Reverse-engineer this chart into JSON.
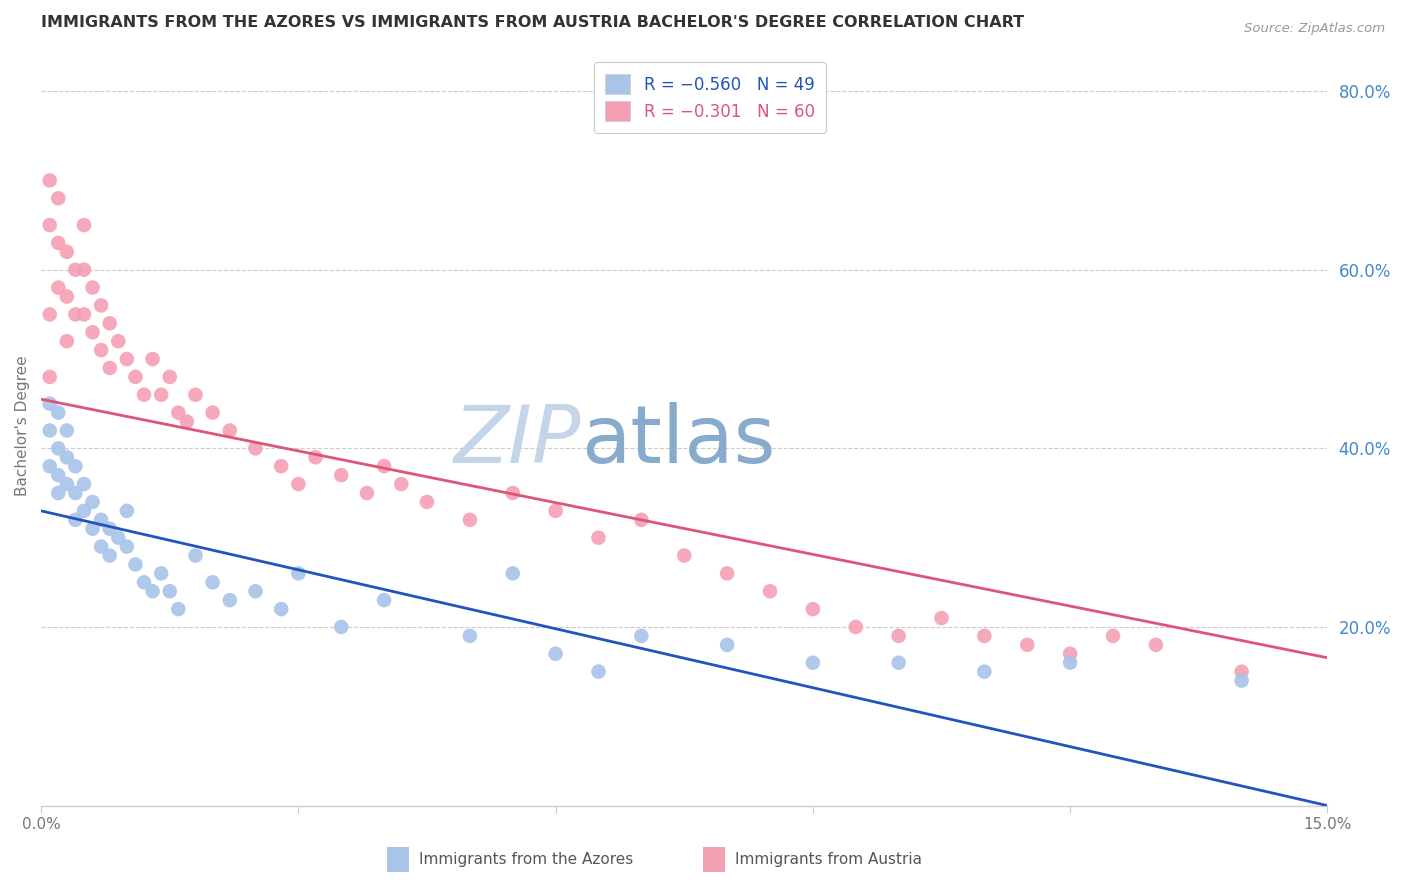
{
  "title": "IMMIGRANTS FROM THE AZORES VS IMMIGRANTS FROM AUSTRIA BACHELOR'S DEGREE CORRELATION CHART",
  "source": "Source: ZipAtlas.com",
  "ylabel": "Bachelor's Degree",
  "x_min": 0.0,
  "x_max": 0.15,
  "y_min": 0.0,
  "y_max": 0.85,
  "right_yticks": [
    0.2,
    0.4,
    0.6,
    0.8
  ],
  "right_yticklabels": [
    "20.0%",
    "40.0%",
    "60.0%",
    "80.0%"
  ],
  "azores_color": "#a8c4e8",
  "austria_color": "#f4a0b4",
  "azores_line_color": "#2255bb",
  "austria_line_color": "#dd5577",
  "azores_trend_intercept": 0.33,
  "azores_trend_slope": -2.2,
  "austria_trend_intercept": 0.455,
  "austria_trend_slope": -1.93,
  "background_color": "#ffffff",
  "grid_color": "#cccccc",
  "title_color": "#333333",
  "right_axis_color": "#4488cc",
  "watermark_zip_color": "#c5d5e8",
  "watermark_atlas_color": "#88aacc",
  "azores_points_x": [
    0.001,
    0.001,
    0.001,
    0.002,
    0.002,
    0.002,
    0.002,
    0.003,
    0.003,
    0.003,
    0.004,
    0.004,
    0.004,
    0.005,
    0.005,
    0.006,
    0.006,
    0.007,
    0.007,
    0.008,
    0.008,
    0.009,
    0.01,
    0.01,
    0.011,
    0.012,
    0.013,
    0.014,
    0.015,
    0.016,
    0.018,
    0.02,
    0.022,
    0.025,
    0.028,
    0.03,
    0.035,
    0.04,
    0.05,
    0.055,
    0.06,
    0.065,
    0.07,
    0.08,
    0.09,
    0.1,
    0.11,
    0.12,
    0.14
  ],
  "azores_points_y": [
    0.45,
    0.42,
    0.38,
    0.44,
    0.4,
    0.37,
    0.35,
    0.42,
    0.39,
    0.36,
    0.38,
    0.35,
    0.32,
    0.36,
    0.33,
    0.34,
    0.31,
    0.32,
    0.29,
    0.31,
    0.28,
    0.3,
    0.33,
    0.29,
    0.27,
    0.25,
    0.24,
    0.26,
    0.24,
    0.22,
    0.28,
    0.25,
    0.23,
    0.24,
    0.22,
    0.26,
    0.2,
    0.23,
    0.19,
    0.26,
    0.17,
    0.15,
    0.19,
    0.18,
    0.16,
    0.16,
    0.15,
    0.16,
    0.14
  ],
  "austria_points_x": [
    0.001,
    0.001,
    0.001,
    0.001,
    0.002,
    0.002,
    0.002,
    0.003,
    0.003,
    0.003,
    0.004,
    0.004,
    0.005,
    0.005,
    0.005,
    0.006,
    0.006,
    0.007,
    0.007,
    0.008,
    0.008,
    0.009,
    0.01,
    0.011,
    0.012,
    0.013,
    0.014,
    0.015,
    0.016,
    0.017,
    0.018,
    0.02,
    0.022,
    0.025,
    0.028,
    0.03,
    0.032,
    0.035,
    0.038,
    0.04,
    0.042,
    0.045,
    0.05,
    0.055,
    0.06,
    0.065,
    0.07,
    0.075,
    0.08,
    0.085,
    0.09,
    0.095,
    0.1,
    0.105,
    0.11,
    0.115,
    0.12,
    0.125,
    0.13,
    0.14
  ],
  "austria_points_y": [
    0.48,
    0.7,
    0.65,
    0.55,
    0.68,
    0.63,
    0.58,
    0.62,
    0.57,
    0.52,
    0.6,
    0.55,
    0.65,
    0.6,
    0.55,
    0.58,
    0.53,
    0.56,
    0.51,
    0.54,
    0.49,
    0.52,
    0.5,
    0.48,
    0.46,
    0.5,
    0.46,
    0.48,
    0.44,
    0.43,
    0.46,
    0.44,
    0.42,
    0.4,
    0.38,
    0.36,
    0.39,
    0.37,
    0.35,
    0.38,
    0.36,
    0.34,
    0.32,
    0.35,
    0.33,
    0.3,
    0.32,
    0.28,
    0.26,
    0.24,
    0.22,
    0.2,
    0.19,
    0.21,
    0.19,
    0.18,
    0.17,
    0.19,
    0.18,
    0.15
  ]
}
